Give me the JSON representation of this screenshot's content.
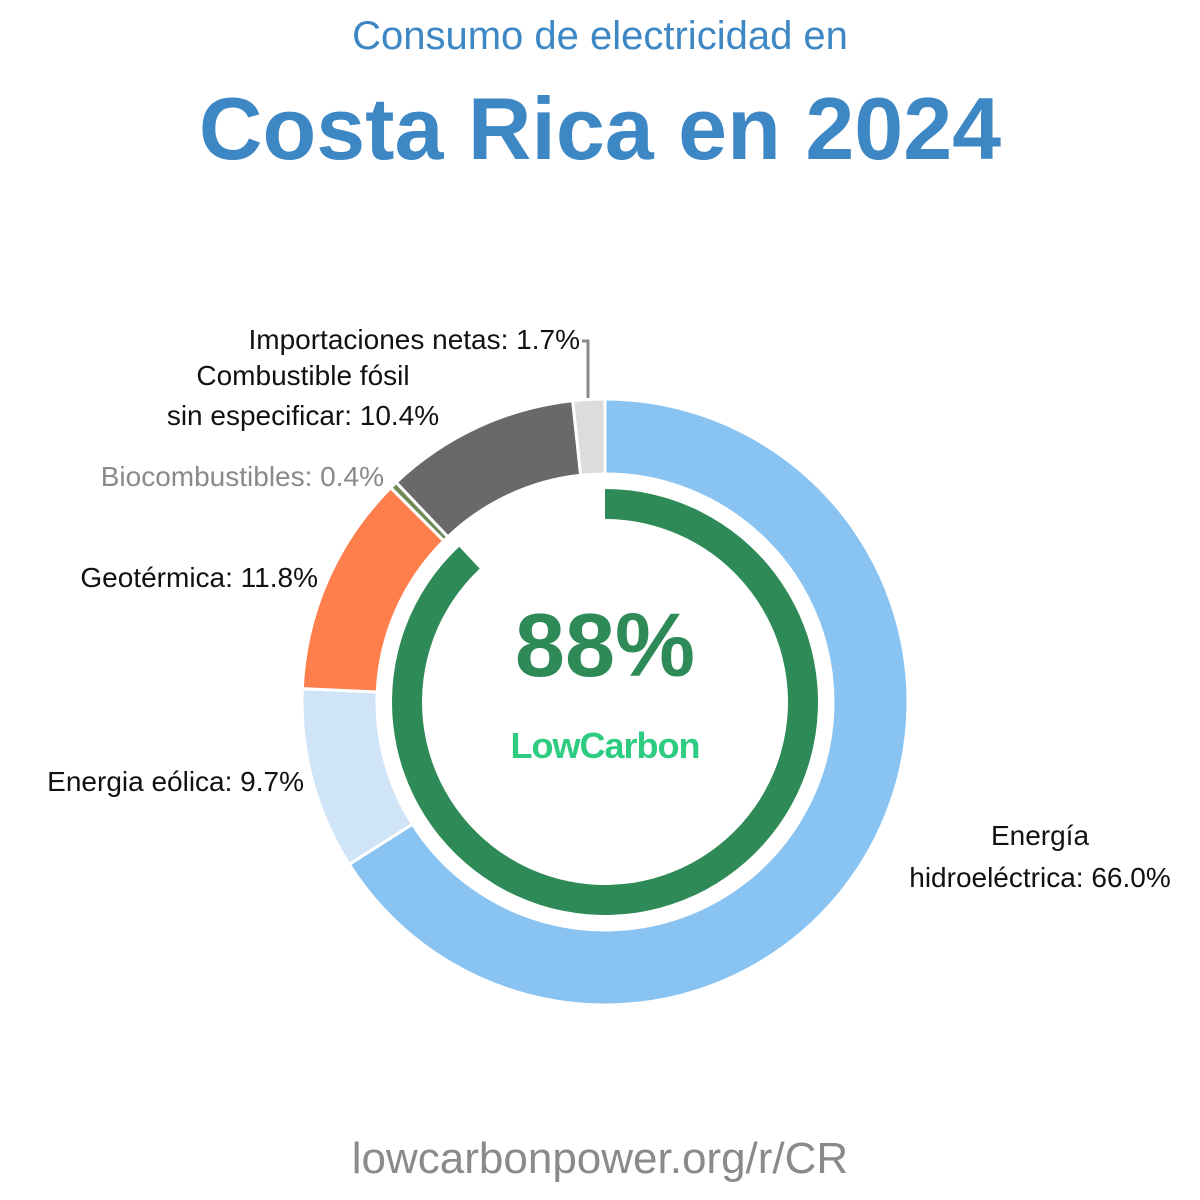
{
  "header": {
    "subtitle": "Consumo de electricidad en",
    "title": "Costa Rica en 2024"
  },
  "center": {
    "value": "88%",
    "brand": "LowCarbon"
  },
  "labels": {
    "imports": "Importaciones netas: 1.7%",
    "fossil_line1": "Combustible fósil",
    "fossil_line2": "sin especificar: 10.4%",
    "biofuels": "Biocombustibles: 0.4%",
    "geothermal": "Geotérmica: 11.8%",
    "wind": "Energia eólica: 9.7%",
    "hydro_line1": "Energía",
    "hydro_line2": "hidroeléctrica: 66.0%"
  },
  "footer": {
    "url": "lowcarbonpower.org/r/CR"
  },
  "colors": {
    "title": "#3d87c4",
    "hydro": "#89c3f2",
    "wind": "#cfe5f7",
    "geothermal": "#ff7f4c",
    "biofuels": "#708a5a",
    "fossil": "#696969",
    "imports": "#dcdcdc",
    "lowcarbon_ring": "#2e8b57",
    "brand": "#2ecc80"
  },
  "chart_data": {
    "type": "pie",
    "subtype": "donut",
    "title": "Costa Rica en 2024",
    "subtitle": "Consumo de electricidad en",
    "categories": [
      "Energía hidroeléctrica",
      "Energia eólica",
      "Geotérmica",
      "Biocombustibles",
      "Combustible fósil sin especificar",
      "Importaciones netas"
    ],
    "values": [
      66.0,
      9.7,
      11.8,
      0.4,
      10.4,
      1.7
    ],
    "unit": "%",
    "start_angle": "top, clockwise",
    "inner_ring": {
      "label": "LowCarbon",
      "value": 88,
      "unit": "%"
    },
    "legend": "inline labels"
  }
}
